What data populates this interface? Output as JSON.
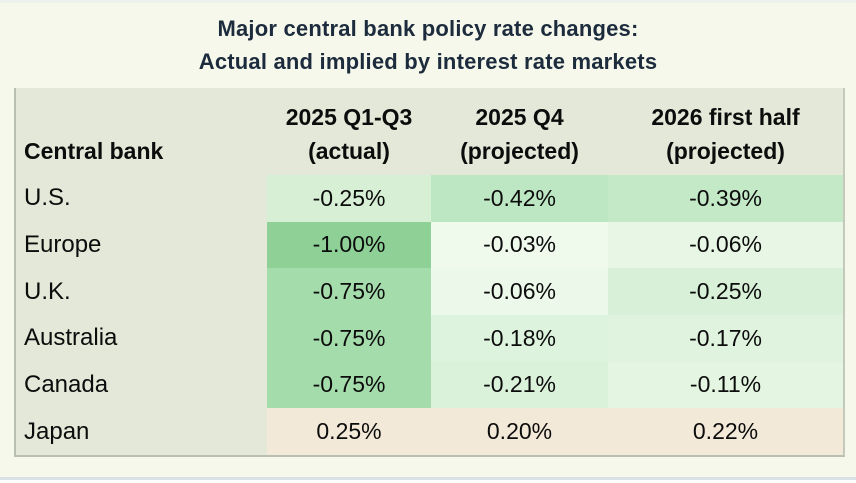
{
  "page": {
    "background": "#f6f8ec",
    "bottom_line_color": "#d9e2e7"
  },
  "title": {
    "line1": "Major central bank policy rate changes:",
    "line2": "Actual and implied by interest rate markets"
  },
  "table": {
    "label_background": "#e3e8d8",
    "header": {
      "bank_label": "Central bank",
      "background": "#e3e8d8",
      "columns": [
        {
          "label": "2025 Q1-Q3",
          "sublabel": "(actual)"
        },
        {
          "label": "2025 Q4",
          "sublabel": "(projected)"
        },
        {
          "label": "2026 first half",
          "sublabel": "(projected)"
        }
      ]
    },
    "rows": [
      {
        "bank": "U.S.",
        "values": [
          "-0.25%",
          "-0.42%",
          "-0.39%"
        ],
        "cell_colors": [
          "#d6efd5",
          "#bde7c2",
          "#c3e9c7"
        ]
      },
      {
        "bank": "Europe",
        "values": [
          "-1.00%",
          "-0.03%",
          "-0.06%"
        ],
        "cell_colors": [
          "#8ed096",
          "#eff9ec",
          "#e8f7e5"
        ]
      },
      {
        "bank": "U.K.",
        "values": [
          "-0.75%",
          "-0.06%",
          "-0.25%"
        ],
        "cell_colors": [
          "#a5dcab",
          "#ecf8e9",
          "#d8f0d7"
        ]
      },
      {
        "bank": "Australia",
        "values": [
          "-0.75%",
          "-0.18%",
          "-0.17%"
        ],
        "cell_colors": [
          "#a5dcab",
          "#def3dd",
          "#dff3de"
        ]
      },
      {
        "bank": "Canada",
        "values": [
          "-0.75%",
          "-0.21%",
          "-0.11%"
        ],
        "cell_colors": [
          "#a5dcab",
          "#dbf2da",
          "#e4f6e2"
        ]
      },
      {
        "bank": "Japan",
        "values": [
          "0.25%",
          "0.20%",
          "0.22%"
        ],
        "cell_colors": [
          "#f3e9d8",
          "#f3e9d8",
          "#f3e9d8"
        ]
      }
    ]
  },
  "chart_data": {
    "type": "table",
    "title": "Major central bank policy rate changes: Actual and implied by interest rate markets",
    "columns": [
      "Central bank",
      "2025 Q1-Q3 (actual)",
      "2025 Q4 (projected)",
      "2026 first half (projected)"
    ],
    "rows": [
      [
        "U.S.",
        -0.25,
        -0.42,
        -0.39
      ],
      [
        "Europe",
        -1.0,
        -0.03,
        -0.06
      ],
      [
        "U.K.",
        -0.75,
        -0.06,
        -0.25
      ],
      [
        "Australia",
        -0.75,
        -0.18,
        -0.17
      ],
      [
        "Canada",
        -0.75,
        -0.21,
        -0.11
      ],
      [
        "Japan",
        0.25,
        0.2,
        0.22
      ]
    ],
    "value_unit": "percentage points",
    "color_encoding": "green shades = rate cuts (darker = larger cut), tan = rate hikes",
    "layout": {
      "heatmap_cells": true,
      "grid": false,
      "legend": false
    }
  }
}
